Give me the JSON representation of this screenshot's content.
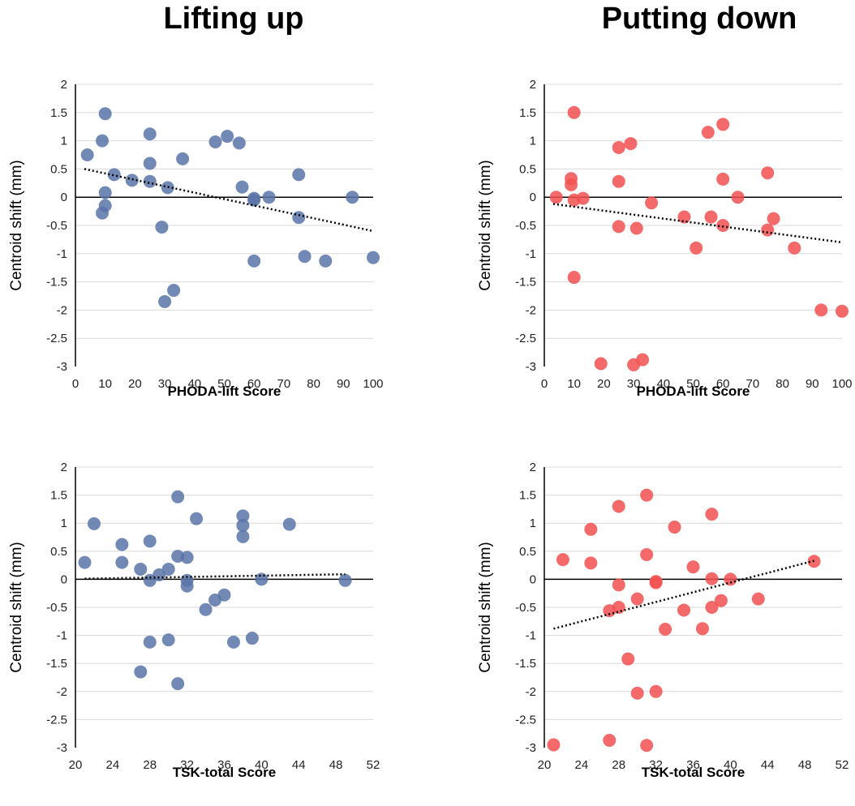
{
  "columns": {
    "left_title": "Lifting up",
    "right_title": "Putting down"
  },
  "colors": {
    "blue": "#5b74a8",
    "red": "#f25050",
    "grid": "#d9d9d9",
    "axis": "#000000"
  },
  "chart_data": [
    {
      "type": "scatter",
      "xlabel": "PHODA-lift Score",
      "ylabel": "Centroid shift (mm)",
      "xlim": [
        0,
        100
      ],
      "ylim": [
        -3,
        2
      ],
      "xticks": [
        0,
        10,
        20,
        30,
        40,
        50,
        60,
        70,
        80,
        90,
        100
      ],
      "yticks": [
        2,
        1.5,
        1,
        0.5,
        0,
        -0.5,
        -1,
        -1.5,
        -2,
        -2.5,
        -3
      ],
      "grid": "horizontal",
      "color": "blue",
      "trendline": {
        "x": [
          3,
          100
        ],
        "y": [
          0.5,
          -0.6
        ]
      },
      "points": [
        {
          "x": 4,
          "y": 0.75
        },
        {
          "x": 9,
          "y": 1.0
        },
        {
          "x": 10,
          "y": 1.48
        },
        {
          "x": 13,
          "y": 0.4
        },
        {
          "x": 10,
          "y": 0.08
        },
        {
          "x": 10,
          "y": -0.15
        },
        {
          "x": 9,
          "y": -0.28
        },
        {
          "x": 19,
          "y": 0.3
        },
        {
          "x": 25,
          "y": 1.12
        },
        {
          "x": 25,
          "y": 0.6
        },
        {
          "x": 25,
          "y": 0.28
        },
        {
          "x": 31,
          "y": 0.17
        },
        {
          "x": 29,
          "y": -0.53
        },
        {
          "x": 33,
          "y": -1.65
        },
        {
          "x": 30,
          "y": -1.85
        },
        {
          "x": 36,
          "y": 0.68
        },
        {
          "x": 47,
          "y": 0.98
        },
        {
          "x": 51,
          "y": 1.08
        },
        {
          "x": 55,
          "y": 0.96
        },
        {
          "x": 56,
          "y": 0.18
        },
        {
          "x": 60,
          "y": -0.02
        },
        {
          "x": 60,
          "y": -0.05
        },
        {
          "x": 65,
          "y": 0.0
        },
        {
          "x": 60,
          "y": -1.13
        },
        {
          "x": 75,
          "y": 0.4
        },
        {
          "x": 75,
          "y": -0.36
        },
        {
          "x": 77,
          "y": -1.05
        },
        {
          "x": 84,
          "y": -1.13
        },
        {
          "x": 93,
          "y": 0.0
        },
        {
          "x": 100,
          "y": -1.07
        }
      ]
    },
    {
      "type": "scatter",
      "xlabel": "PHODA-lift Score",
      "ylabel": "Centroid shift (mm)",
      "xlim": [
        0,
        100
      ],
      "ylim": [
        -3,
        2
      ],
      "xticks": [
        0,
        10,
        20,
        30,
        40,
        50,
        60,
        70,
        80,
        90,
        100
      ],
      "yticks": [
        2,
        1.5,
        1,
        0.5,
        0,
        -0.5,
        -1,
        -1.5,
        -2,
        -2.5,
        -3
      ],
      "grid": "horizontal",
      "color": "red",
      "trendline": {
        "x": [
          3,
          100
        ],
        "y": [
          -0.12,
          -0.8
        ]
      },
      "points": [
        {
          "x": 4,
          "y": 0.0
        },
        {
          "x": 9,
          "y": 0.33
        },
        {
          "x": 9,
          "y": 0.22
        },
        {
          "x": 10,
          "y": 1.5
        },
        {
          "x": 10,
          "y": -0.05
        },
        {
          "x": 13,
          "y": -0.02
        },
        {
          "x": 10,
          "y": -1.42
        },
        {
          "x": 19,
          "y": -2.95
        },
        {
          "x": 25,
          "y": 0.88
        },
        {
          "x": 25,
          "y": 0.28
        },
        {
          "x": 25,
          "y": -0.52
        },
        {
          "x": 29,
          "y": 0.95
        },
        {
          "x": 31,
          "y": -0.55
        },
        {
          "x": 30,
          "y": -2.97
        },
        {
          "x": 33,
          "y": -2.88
        },
        {
          "x": 36,
          "y": -0.1
        },
        {
          "x": 47,
          "y": -0.35
        },
        {
          "x": 51,
          "y": -0.9
        },
        {
          "x": 55,
          "y": 1.15
        },
        {
          "x": 56,
          "y": -0.35
        },
        {
          "x": 60,
          "y": 1.29
        },
        {
          "x": 60,
          "y": 0.32
        },
        {
          "x": 60,
          "y": -0.5
        },
        {
          "x": 65,
          "y": 0.0
        },
        {
          "x": 75,
          "y": 0.43
        },
        {
          "x": 75,
          "y": -0.58
        },
        {
          "x": 77,
          "y": -0.38
        },
        {
          "x": 84,
          "y": -0.9
        },
        {
          "x": 93,
          "y": -2.0
        },
        {
          "x": 100,
          "y": -2.02
        }
      ]
    },
    {
      "type": "scatter",
      "xlabel": "TSK-total Score",
      "ylabel": "Centroid shift (mm)",
      "xlim": [
        20,
        52
      ],
      "ylim": [
        -3,
        2
      ],
      "xticks": [
        20,
        24,
        28,
        32,
        36,
        40,
        44,
        48,
        52
      ],
      "yticks": [
        2,
        1.5,
        1,
        0.5,
        0,
        -0.5,
        -1,
        -1.5,
        -2,
        -2.5,
        -3
      ],
      "grid": "horizontal",
      "color": "blue",
      "trendline": {
        "x": [
          21,
          49
        ],
        "y": [
          0.01,
          0.09
        ]
      },
      "points": [
        {
          "x": 21,
          "y": 0.3
        },
        {
          "x": 22,
          "y": 0.99
        },
        {
          "x": 25,
          "y": 0.62
        },
        {
          "x": 25,
          "y": 0.3
        },
        {
          "x": 27,
          "y": 0.18
        },
        {
          "x": 27,
          "y": -1.65
        },
        {
          "x": 28,
          "y": 0.68
        },
        {
          "x": 28,
          "y": -0.02
        },
        {
          "x": 28,
          "y": -1.12
        },
        {
          "x": 29,
          "y": 0.08
        },
        {
          "x": 30,
          "y": 0.18
        },
        {
          "x": 30,
          "y": -1.08
        },
        {
          "x": 31,
          "y": 1.47
        },
        {
          "x": 31,
          "y": 0.41
        },
        {
          "x": 31,
          "y": -1.86
        },
        {
          "x": 32,
          "y": 0.39
        },
        {
          "x": 32,
          "y": -0.02
        },
        {
          "x": 32,
          "y": -0.12
        },
        {
          "x": 33,
          "y": 1.08
        },
        {
          "x": 34,
          "y": -0.54
        },
        {
          "x": 35,
          "y": -0.37
        },
        {
          "x": 36,
          "y": -0.28
        },
        {
          "x": 37,
          "y": -1.12
        },
        {
          "x": 38,
          "y": 1.13
        },
        {
          "x": 38,
          "y": 0.96
        },
        {
          "x": 38,
          "y": 0.76
        },
        {
          "x": 39,
          "y": -1.05
        },
        {
          "x": 40,
          "y": 0.0
        },
        {
          "x": 43,
          "y": 0.98
        },
        {
          "x": 49,
          "y": -0.02
        }
      ]
    },
    {
      "type": "scatter",
      "xlabel": "TSK-total Score",
      "ylabel": "Centroid shift (mm)",
      "xlim": [
        20,
        52
      ],
      "ylim": [
        -3,
        2
      ],
      "xticks": [
        20,
        24,
        28,
        32,
        36,
        40,
        44,
        48,
        52
      ],
      "yticks": [
        2,
        1.5,
        1,
        0.5,
        0,
        -0.5,
        -1,
        -1.5,
        -2,
        -2.5,
        -3
      ],
      "grid": "horizontal",
      "color": "red",
      "trendline": {
        "x": [
          21,
          49
        ],
        "y": [
          -0.88,
          0.33
        ]
      },
      "points": [
        {
          "x": 21,
          "y": -2.95
        },
        {
          "x": 22,
          "y": 0.35
        },
        {
          "x": 25,
          "y": 0.89
        },
        {
          "x": 25,
          "y": 0.29
        },
        {
          "x": 27,
          "y": -0.56
        },
        {
          "x": 27,
          "y": -2.87
        },
        {
          "x": 28,
          "y": 1.3
        },
        {
          "x": 28,
          "y": -0.1
        },
        {
          "x": 28,
          "y": -0.5
        },
        {
          "x": 29,
          "y": -1.42
        },
        {
          "x": 30,
          "y": -0.35
        },
        {
          "x": 30,
          "y": -2.03
        },
        {
          "x": 31,
          "y": 1.5
        },
        {
          "x": 31,
          "y": 0.44
        },
        {
          "x": 31,
          "y": -2.96
        },
        {
          "x": 32,
          "y": -0.04
        },
        {
          "x": 32,
          "y": -0.06
        },
        {
          "x": 32,
          "y": -2.0
        },
        {
          "x": 33,
          "y": -0.89
        },
        {
          "x": 34,
          "y": 0.93
        },
        {
          "x": 35,
          "y": -0.55
        },
        {
          "x": 36,
          "y": 0.22
        },
        {
          "x": 37,
          "y": -0.88
        },
        {
          "x": 38,
          "y": 1.16
        },
        {
          "x": 38,
          "y": 0.01
        },
        {
          "x": 38,
          "y": -0.5
        },
        {
          "x": 39,
          "y": -0.38
        },
        {
          "x": 40,
          "y": 0.0
        },
        {
          "x": 43,
          "y": -0.35
        },
        {
          "x": 49,
          "y": 0.32
        }
      ]
    }
  ]
}
